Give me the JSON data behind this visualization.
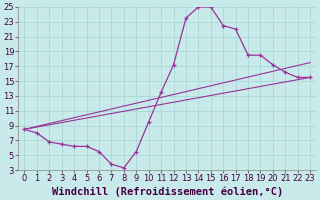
{
  "xlabel": "Windchill (Refroidissement éolien,°C)",
  "ylabel": "",
  "background_color": "#c8eaea",
  "grid_color": "#aad8d8",
  "line_color": "#993399",
  "xlim": [
    -0.5,
    23.5
  ],
  "ylim": [
    3,
    25
  ],
  "xticks": [
    0,
    1,
    2,
    3,
    4,
    5,
    6,
    7,
    8,
    9,
    10,
    11,
    12,
    13,
    14,
    15,
    16,
    17,
    18,
    19,
    20,
    21,
    22,
    23
  ],
  "yticks": [
    3,
    5,
    7,
    9,
    11,
    13,
    15,
    17,
    19,
    21,
    23,
    25
  ],
  "line1_x": [
    0,
    1,
    2,
    3,
    4,
    5,
    6,
    7,
    8,
    9,
    10,
    11,
    12,
    13,
    14,
    15,
    16,
    17,
    18,
    19,
    20,
    21,
    22,
    23
  ],
  "line1_y": [
    8.5,
    8.0,
    6.8,
    6.5,
    6.2,
    6.2,
    5.5,
    3.8,
    3.3,
    5.5,
    9.5,
    13.5,
    17.2,
    23.5,
    25.0,
    25.0,
    22.5,
    22.0,
    18.5,
    18.5,
    17.2,
    16.2,
    15.5,
    15.5
  ],
  "line2_x": [
    0,
    23
  ],
  "line2_y": [
    8.5,
    17.5
  ],
  "line3_x": [
    0,
    23
  ],
  "line3_y": [
    8.5,
    15.5
  ],
  "tick_fontsize": 6,
  "xlabel_fontsize": 7.5
}
